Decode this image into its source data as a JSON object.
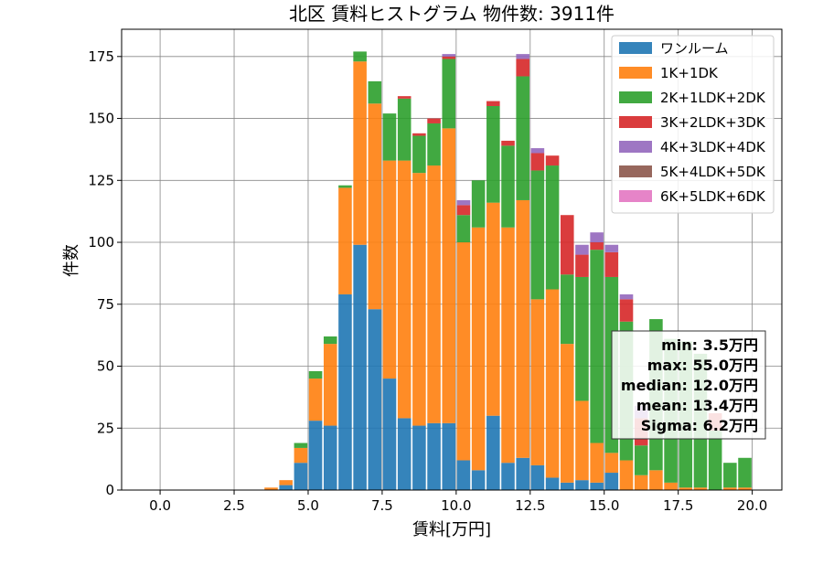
{
  "chart_data": {
    "type": "bar",
    "stacked": true,
    "title": "北区 賃料ヒストグラム  物件数: 3911件",
    "xlabel": "賃料[万円]",
    "ylabel": "件数",
    "xlim": [
      -1.3,
      21.0
    ],
    "ylim": [
      0,
      186
    ],
    "xticks": [
      0,
      2.5,
      5,
      7.5,
      10,
      12.5,
      15,
      17.5,
      20
    ],
    "xtick_labels": [
      "0.0",
      "2.5",
      "5.0",
      "7.5",
      "10.0",
      "12.5",
      "15.0",
      "17.5",
      "20.0"
    ],
    "yticks": [
      0,
      25,
      50,
      75,
      100,
      125,
      150,
      175
    ],
    "ytick_labels": [
      "0",
      "25",
      "50",
      "75",
      "100",
      "125",
      "150",
      "175"
    ],
    "grid": true,
    "legend_position": "top-right",
    "bin_width": 0.5,
    "bin_starts": [
      3.5,
      4.0,
      4.5,
      5.0,
      5.5,
      6.0,
      6.5,
      7.0,
      7.5,
      8.0,
      8.5,
      9.0,
      9.5,
      10.0,
      10.5,
      11.0,
      11.5,
      12.0,
      12.5,
      13.0,
      13.5,
      14.0,
      14.5,
      15.0,
      15.5,
      16.0,
      16.5,
      17.0,
      17.5,
      18.0,
      18.5,
      19.0,
      19.5
    ],
    "series": [
      {
        "name": "ワンルーム",
        "color": "#1f77b4",
        "values": [
          0,
          2,
          11,
          28,
          26,
          79,
          99,
          73,
          45,
          29,
          26,
          27,
          27,
          12,
          8,
          30,
          11,
          13,
          10,
          5,
          3,
          4,
          3,
          7,
          0,
          0,
          0,
          0,
          0,
          0,
          0,
          0,
          0
        ]
      },
      {
        "name": "1K+1DK",
        "color": "#ff7f0e",
        "values": [
          1,
          2,
          6,
          17,
          33,
          43,
          74,
          83,
          88,
          104,
          102,
          104,
          119,
          88,
          98,
          86,
          95,
          104,
          67,
          76,
          56,
          32,
          16,
          8,
          12,
          6,
          8,
          3,
          1,
          1,
          0,
          1,
          1
        ]
      },
      {
        "name": "2K+1LDK+2DK",
        "color": "#2ca02c",
        "values": [
          0,
          0,
          2,
          3,
          3,
          1,
          4,
          9,
          19,
          25,
          15,
          17,
          28,
          11,
          19,
          39,
          33,
          50,
          52,
          50,
          28,
          50,
          78,
          71,
          56,
          12,
          61,
          58,
          59,
          54,
          24,
          10,
          12
        ]
      },
      {
        "name": "3K+2LDK+3DK",
        "color": "#d62728",
        "values": [
          0,
          0,
          0,
          0,
          0,
          0,
          0,
          0,
          0,
          1,
          1,
          2,
          1,
          4,
          0,
          2,
          2,
          7,
          7,
          4,
          24,
          9,
          3,
          10,
          9,
          11,
          0,
          0,
          0,
          0,
          7,
          0,
          0
        ]
      },
      {
        "name": "4K+3LDK+4DK",
        "color": "#9467bd",
        "values": [
          0,
          0,
          0,
          0,
          0,
          0,
          0,
          0,
          0,
          0,
          0,
          0,
          1,
          2,
          0,
          0,
          0,
          2,
          2,
          0,
          0,
          4,
          4,
          3,
          2,
          5,
          0,
          0,
          0,
          0,
          0,
          0,
          0
        ]
      },
      {
        "name": "5K+4LDK+5DK",
        "color": "#8c564b",
        "values": [
          0,
          0,
          0,
          0,
          0,
          0,
          0,
          0,
          0,
          0,
          0,
          0,
          0,
          0,
          0,
          0,
          0,
          0,
          0,
          0,
          0,
          0,
          0,
          0,
          0,
          0,
          0,
          0,
          0,
          0,
          0,
          0,
          0
        ]
      },
      {
        "name": "6K+5LDK+6DK",
        "color": "#e377c2",
        "values": [
          0,
          0,
          0,
          0,
          0,
          0,
          0,
          0,
          0,
          0,
          0,
          0,
          0,
          0,
          0,
          0,
          0,
          0,
          0,
          0,
          0,
          0,
          0,
          0,
          0,
          0,
          0,
          0,
          0,
          0,
          0,
          0,
          0
        ]
      }
    ],
    "stats_box": {
      "min": "min: 3.5万円",
      "max": "max: 55.0万円",
      "median": "median: 12.0万円",
      "mean": "mean: 13.4万円",
      "sigma": "Sigma: 6.2万円"
    }
  }
}
